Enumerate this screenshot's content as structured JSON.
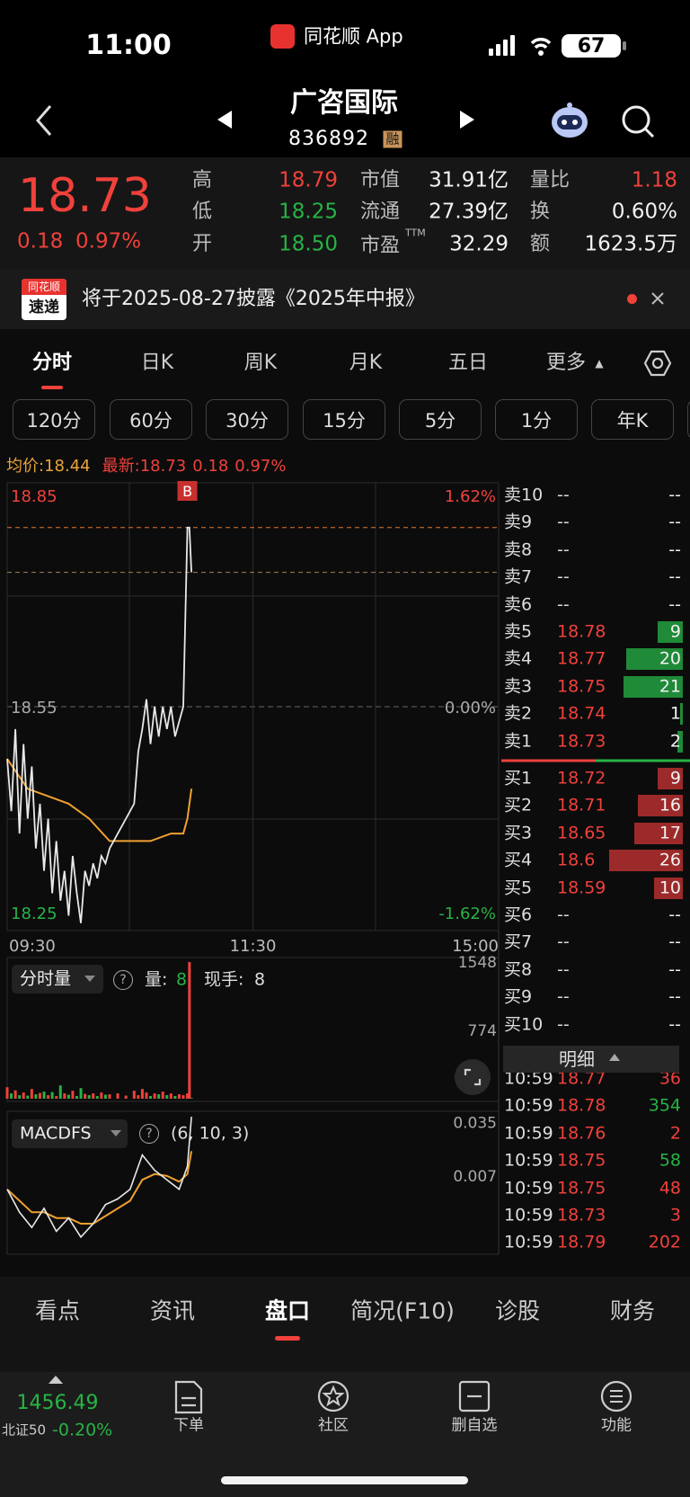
{
  "status_bar": {
    "time": "11:00",
    "app": "同花顺 App",
    "battery": "67"
  },
  "nav": {
    "name": "广咨国际",
    "code": "836892",
    "badge": "融"
  },
  "quote": {
    "price": "18.73",
    "change": "0.18",
    "change_pct": "0.97%",
    "fields": [
      {
        "label": "高",
        "value": "18.79"
      },
      {
        "label": "低",
        "value": "18.25"
      },
      {
        "label": "开",
        "value": "18.50"
      },
      {
        "label": "市值",
        "value": "31.91亿"
      },
      {
        "label": "流通",
        "value": "27.39亿"
      },
      {
        "label": "市盈",
        "sup": "TTM",
        "value": "32.29"
      },
      {
        "label": "量比",
        "value": "1.18"
      },
      {
        "label": "换",
        "value": "0.60%"
      },
      {
        "label": "额",
        "value": "1623.5万"
      }
    ]
  },
  "notice": {
    "logo_top": "同花顺",
    "logo_bottom": "速递",
    "text": "将于2025-08-27披露《2025年中报》"
  },
  "tabs": [
    "分时",
    "日K",
    "周K",
    "月K",
    "五日",
    "更多"
  ],
  "periods": [
    "120分",
    "60分",
    "30分",
    "15分",
    "5分",
    "1分",
    "年K"
  ],
  "info": {
    "avg_label": "均价:",
    "avg": "18.44",
    "last_label": "最新:",
    "last": "18.73",
    "change": "0.18",
    "pct": "0.97%"
  },
  "intraday": {
    "ylim": [
      18.25,
      18.85
    ],
    "yticks": [
      18.85,
      18.55,
      18.25
    ],
    "pct_ticks": [
      "1.62%",
      "0.00%",
      "-1.62%"
    ],
    "xlim": [
      0,
      240
    ],
    "xticks": [
      {
        "value": 0,
        "label": "09:30"
      },
      {
        "value": 120,
        "label": "11:30"
      },
      {
        "value": 240,
        "label": "15:00"
      }
    ],
    "marker": "B",
    "minute": [
      0,
      2,
      4,
      6,
      8,
      10,
      12,
      14,
      16,
      18,
      20,
      22,
      24,
      26,
      28,
      30,
      32,
      34,
      36,
      38,
      40,
      42,
      44,
      46,
      48,
      50,
      54,
      58,
      62,
      64,
      66,
      68,
      70,
      72,
      74,
      76,
      78,
      80,
      82,
      84,
      86,
      88,
      89,
      90
    ],
    "price": [
      18.48,
      18.41,
      18.52,
      18.38,
      18.5,
      18.4,
      18.47,
      18.36,
      18.42,
      18.33,
      18.4,
      18.3,
      18.37,
      18.29,
      18.33,
      18.27,
      18.35,
      18.3,
      18.26,
      18.33,
      18.31,
      18.34,
      18.32,
      18.35,
      18.34,
      18.36,
      18.38,
      18.4,
      18.42,
      18.49,
      18.52,
      18.56,
      18.5,
      18.55,
      18.51,
      18.55,
      18.52,
      18.55,
      18.51,
      18.53,
      18.55,
      18.79,
      18.79,
      18.73
    ],
    "avg_minute": [
      0,
      10,
      20,
      30,
      40,
      50,
      60,
      70,
      80,
      86,
      88,
      90
    ],
    "avg": [
      18.48,
      18.44,
      18.43,
      18.42,
      18.4,
      18.37,
      18.37,
      18.37,
      18.38,
      18.38,
      18.4,
      18.44
    ]
  },
  "volume": {
    "selector": "分时量",
    "qty_label": "量:",
    "qty": "8",
    "hand_label": "现手:",
    "hand": "8",
    "ylim": [
      0,
      1548
    ],
    "yticks": [
      1548,
      774
    ],
    "values": [
      130,
      60,
      95,
      40,
      70,
      35,
      110,
      50,
      65,
      80,
      40,
      75,
      30,
      150,
      60,
      45,
      90,
      30,
      120,
      55,
      40,
      60,
      30,
      70,
      45,
      50,
      60,
      35,
      90,
      40,
      110,
      70,
      30,
      60,
      50,
      80,
      40,
      60,
      30,
      50,
      40,
      60,
      1548,
      8
    ]
  },
  "macd": {
    "selector": "MACDFS",
    "params": "(6, 10, 3)",
    "ylim": [
      -0.034,
      0.039
    ],
    "yticks": [
      0.035,
      0.007
    ],
    "minute": [
      0,
      6,
      12,
      18,
      24,
      30,
      36,
      42,
      48,
      54,
      60,
      66,
      72,
      78,
      84,
      88,
      90
    ],
    "dif": [
      0.0,
      -0.012,
      -0.02,
      -0.01,
      -0.022,
      -0.015,
      -0.025,
      -0.018,
      -0.008,
      -0.005,
      0.0,
      0.018,
      0.01,
      0.005,
      0.0,
      0.012,
      0.038
    ],
    "dea": [
      0.0,
      -0.006,
      -0.012,
      -0.012,
      -0.015,
      -0.015,
      -0.018,
      -0.018,
      -0.014,
      -0.01,
      -0.006,
      0.005,
      0.008,
      0.007,
      0.004,
      0.008,
      0.02
    ]
  },
  "order_book": {
    "asks": [
      {
        "label": "卖10",
        "price": "--",
        "volume": "--"
      },
      {
        "label": "卖9",
        "price": "--",
        "volume": "--"
      },
      {
        "label": "卖8",
        "price": "--",
        "volume": "--"
      },
      {
        "label": "卖7",
        "price": "--",
        "volume": "--"
      },
      {
        "label": "卖6",
        "price": "--",
        "volume": "--"
      },
      {
        "label": "卖5",
        "price": 18.78,
        "volume": 9
      },
      {
        "label": "卖4",
        "price": 18.77,
        "volume": 20
      },
      {
        "label": "卖3",
        "price": 18.75,
        "volume": 21
      },
      {
        "label": "卖2",
        "price": 18.74,
        "volume": 1
      },
      {
        "label": "卖1",
        "price": 18.73,
        "volume": 2
      }
    ],
    "bids": [
      {
        "label": "买1",
        "price": 18.72,
        "volume": 9
      },
      {
        "label": "买2",
        "price": 18.71,
        "volume": 16
      },
      {
        "label": "买3",
        "price": 18.65,
        "volume": 17
      },
      {
        "label": "买4",
        "price": 18.6,
        "volume": 26
      },
      {
        "label": "买5",
        "price": 18.59,
        "volume": 10
      },
      {
        "label": "买6",
        "price": "--",
        "volume": "--"
      },
      {
        "label": "买7",
        "price": "--",
        "volume": "--"
      },
      {
        "label": "买8",
        "price": "--",
        "volume": "--"
      },
      {
        "label": "买9",
        "price": "--",
        "volume": "--"
      },
      {
        "label": "买10",
        "price": "--",
        "volume": "--"
      }
    ]
  },
  "trades": {
    "title": "明细",
    "rows": [
      {
        "time": "10:59",
        "price": "18.77",
        "volume": "36",
        "color": "#f0413b"
      },
      {
        "time": "10:59",
        "price": "18.78",
        "volume": "354",
        "color": "#27b345"
      },
      {
        "time": "10:59",
        "price": "18.76",
        "volume": "2",
        "color": "#f0413b"
      },
      {
        "time": "10:59",
        "price": "18.75",
        "volume": "58",
        "color": "#27b345"
      },
      {
        "time": "10:59",
        "price": "18.75",
        "volume": "48",
        "color": "#f0413b"
      },
      {
        "time": "10:59",
        "price": "18.73",
        "volume": "3",
        "color": "#f0413b"
      },
      {
        "time": "10:59",
        "price": "18.79",
        "volume": "202",
        "color": "#f0413b"
      }
    ]
  },
  "bottom_tabs": {
    "items": [
      "看点",
      "资讯",
      "盘口",
      "简况(F10)",
      "诊股",
      "财务"
    ],
    "active": 2
  },
  "footer": {
    "index_value": "1456.49",
    "index_name": "北证50",
    "index_pct": "-0.20%",
    "items": [
      "下单",
      "社区",
      "删自选",
      "功能"
    ]
  }
}
